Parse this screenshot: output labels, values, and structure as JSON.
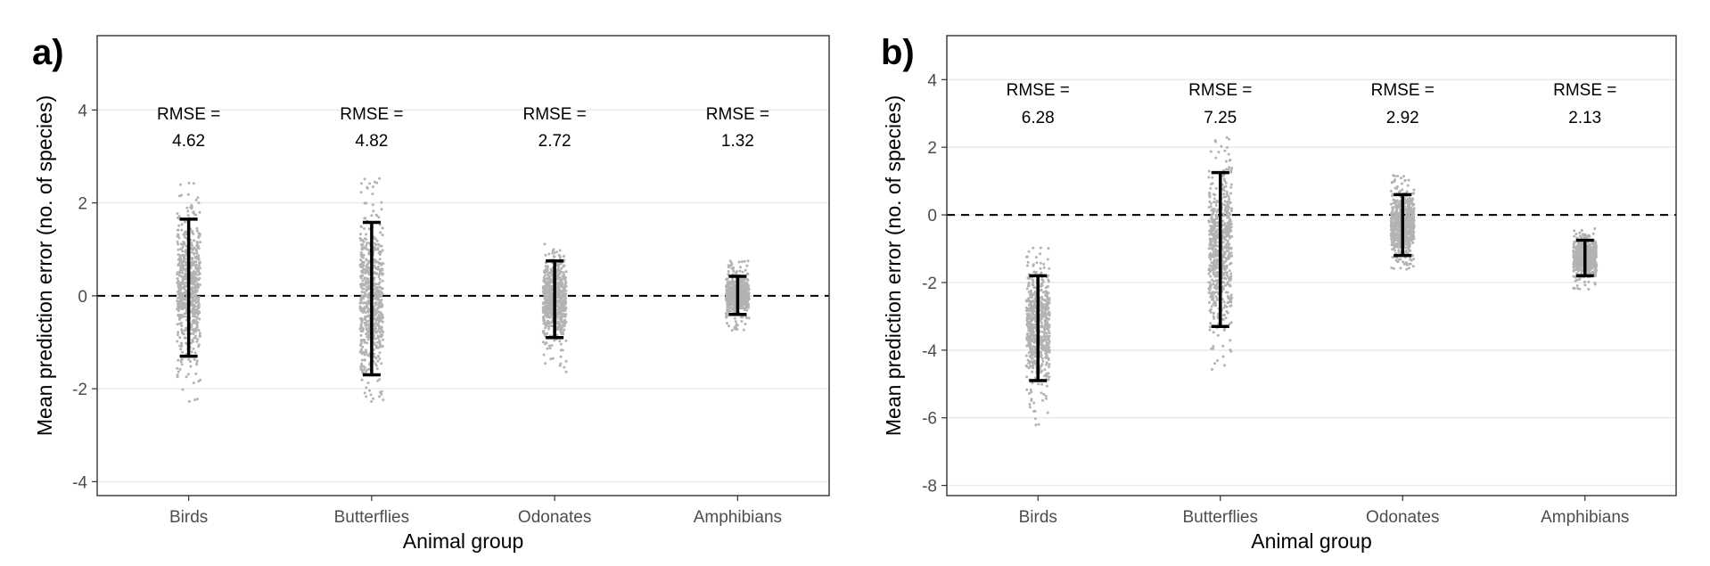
{
  "chart_data": [
    {
      "panel": "a)",
      "type": "scatter",
      "xlabel": "Animal group",
      "ylabel": "Mean prediction error (no. of species)",
      "categories": [
        "Birds",
        "Butterflies",
        "Odonates",
        "Amphibians"
      ],
      "ylim": [
        -4.3,
        5.6
      ],
      "yticks": [
        "-4",
        "-2",
        "0",
        "2",
        "4"
      ],
      "reference_line": 0,
      "grid": true,
      "rmse_label": "RMSE =",
      "rmse_values": [
        "4.62",
        "4.82",
        "2.72",
        "1.32"
      ],
      "error_bars": [
        {
          "lower": -1.3,
          "upper": 1.65
        },
        {
          "lower": -1.7,
          "upper": 1.58
        },
        {
          "lower": -0.9,
          "upper": 0.75
        },
        {
          "lower": -0.4,
          "upper": 0.42
        }
      ],
      "point_ranges": [
        {
          "min": -2.3,
          "max": 2.5
        },
        {
          "min": -2.35,
          "max": 2.6
        },
        {
          "min": -1.65,
          "max": 1.2
        },
        {
          "min": -0.75,
          "max": 0.75
        }
      ]
    },
    {
      "panel": "b)",
      "type": "scatter",
      "xlabel": "Animal group",
      "ylabel": "Mean prediction error (no. of species)",
      "categories": [
        "Birds",
        "Butterflies",
        "Odonates",
        "Amphibians"
      ],
      "ylim": [
        -8.3,
        5.3
      ],
      "yticks": [
        "-8",
        "-6",
        "-4",
        "-2",
        "0",
        "2",
        "4"
      ],
      "reference_line": 0,
      "grid": true,
      "rmse_label": "RMSE =",
      "rmse_values": [
        "6.28",
        "7.25",
        "2.92",
        "2.13"
      ],
      "error_bars": [
        {
          "lower": -4.9,
          "upper": -1.8
        },
        {
          "lower": -3.3,
          "upper": 1.25
        },
        {
          "lower": -1.2,
          "upper": 0.6
        },
        {
          "lower": -1.8,
          "upper": -0.75
        }
      ],
      "point_ranges": [
        {
          "min": -6.3,
          "max": -0.8
        },
        {
          "min": -4.6,
          "max": 2.3
        },
        {
          "min": -1.65,
          "max": 1.2
        },
        {
          "min": -2.2,
          "max": -0.4
        }
      ]
    }
  ]
}
